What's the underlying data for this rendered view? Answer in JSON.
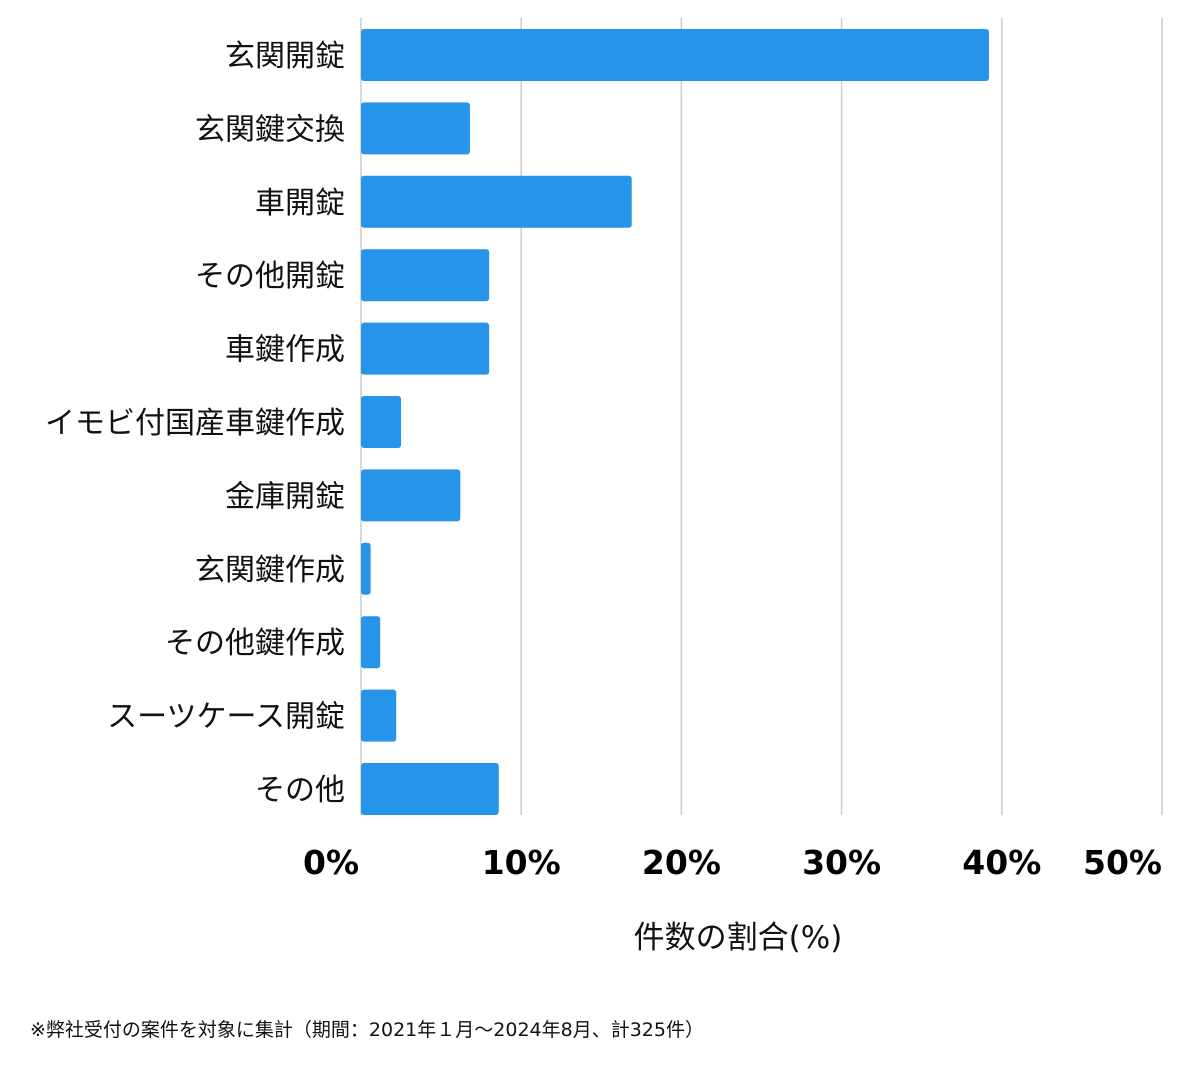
{
  "chart_data": {
    "type": "bar",
    "orientation": "horizontal",
    "categories": [
      "玄関開錠",
      "玄関鍵交換",
      "車開錠",
      "その他開錠",
      "車鍵作成",
      "イモビ付国産車鍵作成",
      "金庫開錠",
      "玄関鍵作成",
      "その他鍵作成",
      "スーツケース開錠",
      "その他"
    ],
    "values": [
      39.2,
      6.8,
      16.9,
      8.0,
      8.0,
      2.5,
      6.2,
      0.6,
      1.2,
      2.2,
      8.6
    ],
    "xlabel": "件数の割合(%)",
    "xlim": [
      0,
      50
    ],
    "xticks": [
      0,
      10,
      20,
      30,
      40,
      50
    ],
    "xtick_labels": [
      "0%",
      "10%",
      "20%",
      "30%",
      "40%",
      "50%"
    ],
    "grid": "vertical",
    "bar_color": "#2694e8",
    "grid_color": "#cccccc"
  },
  "footnote": "※弊社受付の案件を対象に集計（期間：2021年１月〜2024年8月、計325件）"
}
